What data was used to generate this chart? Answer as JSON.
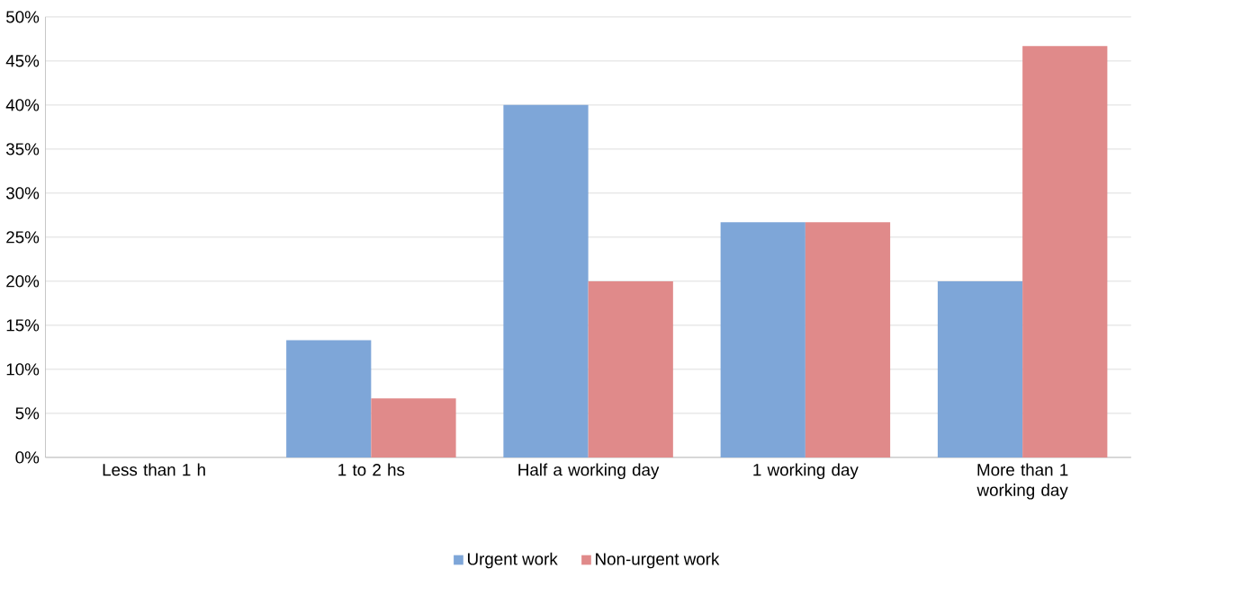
{
  "chart_data": {
    "type": "bar",
    "categories": [
      "Less than 1 h",
      "1 to 2 hs",
      "Half a working day",
      "1 working day",
      "More than 1 working day"
    ],
    "series": [
      {
        "name": "Urgent work",
        "color": "#7ea6d8",
        "values": [
          0,
          13.3,
          40,
          26.7,
          20
        ]
      },
      {
        "name": "Non-urgent work",
        "color": "#e08a8a",
        "values": [
          0,
          6.7,
          20,
          26.7,
          46.7
        ]
      }
    ],
    "ylim": [
      0,
      50
    ],
    "yticks": [
      {
        "value": 0,
        "label": "0%"
      },
      {
        "value": 5,
        "label": "5%"
      },
      {
        "value": 10,
        "label": "10%"
      },
      {
        "value": 15,
        "label": "15%"
      },
      {
        "value": 20,
        "label": "20%"
      },
      {
        "value": 25,
        "label": "25%"
      },
      {
        "value": 30,
        "label": "30%"
      },
      {
        "value": 35,
        "label": "35%"
      },
      {
        "value": 40,
        "label": "40%"
      },
      {
        "value": 45,
        "label": "45%"
      },
      {
        "value": 50,
        "label": "50%"
      }
    ],
    "grid": "y",
    "legend": "bottom"
  }
}
